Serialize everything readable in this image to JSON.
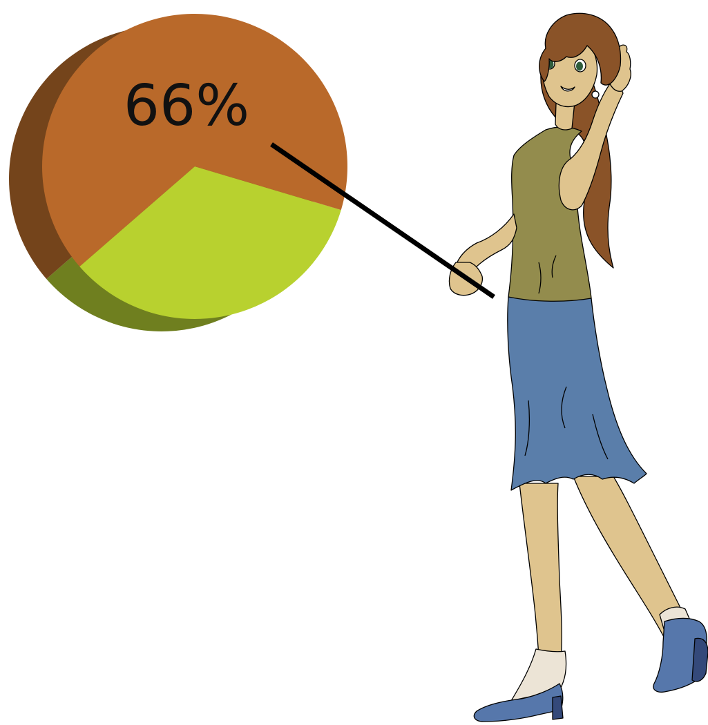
{
  "chart_data": {
    "type": "pie",
    "title": "",
    "style": "3d",
    "slices": [
      {
        "value": 66,
        "color": "#b9692a",
        "side_color": "#74441b"
      },
      {
        "value": 34,
        "color": "#b8d12f",
        "side_color": "#6f7f1f"
      }
    ],
    "data_labels": [
      "66%"
    ]
  },
  "illustration": {
    "description_icon": "presenter-woman-with-pointer",
    "colors": {
      "skin": "#dfc48e",
      "hair": "#8a5328",
      "top": "#938c4d",
      "skirt": "#5a7eaa",
      "shoes": "#5677ab",
      "shoes_dark": "#34497a",
      "socks": "#ece4d6",
      "pointer": "#000000"
    }
  }
}
